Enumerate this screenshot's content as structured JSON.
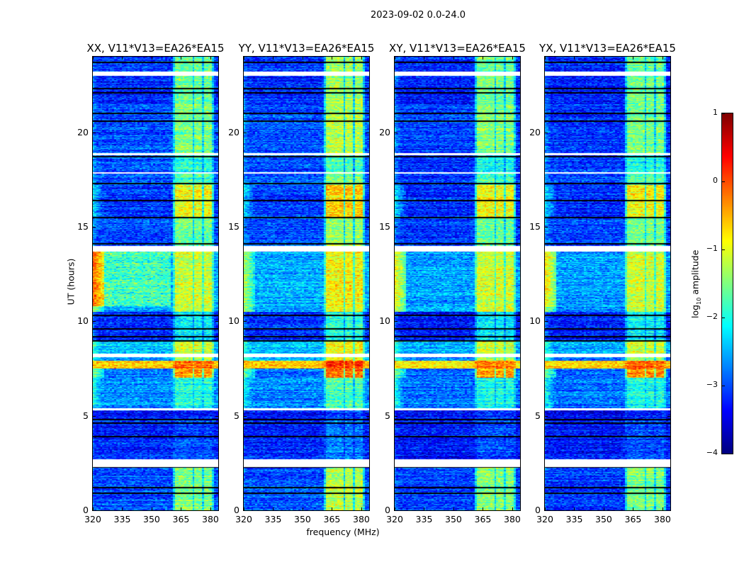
{
  "chart_data": {
    "type": "heatmap",
    "title": "2023-09-02 0.0-24.0",
    "xlabel": "frequency (MHz)",
    "ylabel": "UT (hours)",
    "xlim": [
      320,
      384
    ],
    "ylim": [
      0,
      24
    ],
    "xticks": [
      "320",
      "335",
      "350",
      "365",
      "380"
    ],
    "xtick_values": [
      320,
      335,
      350,
      365,
      380
    ],
    "yticks": [
      "0",
      "5",
      "10",
      "15",
      "20"
    ],
    "ytick_values": [
      0,
      5,
      10,
      15,
      20
    ],
    "colorbar": {
      "label_main": "log",
      "label_sub": "10",
      "label_rest": " amplitude",
      "range": [
        -4,
        1
      ],
      "ticks": [
        "1",
        "0",
        "−1",
        "−2",
        "−3",
        "−4"
      ],
      "tick_values": [
        1,
        0,
        -1,
        -2,
        -3,
        -4
      ],
      "colormap": "jet"
    },
    "panels": [
      {
        "title": "XX, V11*V13=EA26*EA15",
        "base_offset": 0,
        "rfi_offset": 0,
        "edge_boost": 1
      },
      {
        "title": "YY, V11*V13=EA26*EA15",
        "base_offset": 0,
        "rfi_offset": 0.25,
        "edge_boost": 0
      },
      {
        "title": "XY, V11*V13=EA26*EA15",
        "base_offset": -0.1,
        "rfi_offset": 0,
        "edge_boost": 0.3
      },
      {
        "title": "YX, V11*V13=EA26*EA15",
        "base_offset": -0.1,
        "rfi_offset": 0,
        "edge_boost": 0.4
      }
    ],
    "rfi_channels_mhz": [
      [
        362,
        366.5
      ],
      [
        367.5,
        371
      ],
      [
        372,
        376
      ],
      [
        377,
        380.5
      ]
    ],
    "time_segments": [
      {
        "from": 0,
        "to": 2.3,
        "base": -3.0,
        "rfi": -1.5,
        "edge": -2.8
      },
      {
        "from": 2.3,
        "to": 2.7,
        "flagged": true
      },
      {
        "from": 2.7,
        "to": 4.8,
        "base": -3.2,
        "rfi": -3.0,
        "edge": -3.0
      },
      {
        "from": 4.8,
        "to": 5.3,
        "base": -3.3,
        "rfi": -3.2,
        "edge": -3.2
      },
      {
        "from": 5.3,
        "to": 5.4,
        "flagged": true
      },
      {
        "from": 5.4,
        "to": 7.0,
        "base": -2.7,
        "rfi": -2.0,
        "edge": -2.0
      },
      {
        "from": 7.0,
        "to": 7.5,
        "base": -2.8,
        "rfi": -0.4,
        "edge": -1.5
      },
      {
        "from": 7.5,
        "to": 7.9,
        "base": -0.6,
        "rfi": -0.1,
        "edge": -0.4
      },
      {
        "from": 7.9,
        "to": 8.1,
        "base": -2.6,
        "rfi": -1.2,
        "edge": -1.8
      },
      {
        "from": 8.1,
        "to": 8.3,
        "flagged": true
      },
      {
        "from": 8.3,
        "to": 9.0,
        "base": -2.4,
        "rfi": -1.1,
        "edge": -1.8
      },
      {
        "from": 9.0,
        "to": 10.5,
        "base": -3.2,
        "rfi": -2.2,
        "edge": -2.8
      },
      {
        "from": 10.5,
        "to": 13.7,
        "base": -2.5,
        "rfi": -1.1,
        "edge": -1.2
      },
      {
        "from": 13.7,
        "to": 14.0,
        "flagged": true
      },
      {
        "from": 14.0,
        "to": 15.5,
        "base": -3.0,
        "rfi": -1.6,
        "edge": -2.6
      },
      {
        "from": 15.5,
        "to": 17.2,
        "base": -3.1,
        "rfi": -0.9,
        "edge": -2.2
      },
      {
        "from": 17.2,
        "to": 17.8,
        "base": -3.0,
        "rfi": -1.8,
        "edge": -2.6
      },
      {
        "from": 17.8,
        "to": 17.9,
        "flagged": true
      },
      {
        "from": 17.9,
        "to": 18.8,
        "base": -3.0,
        "rfi": -2.0,
        "edge": -2.6
      },
      {
        "from": 18.8,
        "to": 18.9,
        "flagged": true
      },
      {
        "from": 18.9,
        "to": 21.5,
        "base": -3.0,
        "rfi": -1.5,
        "edge": -2.6
      },
      {
        "from": 21.5,
        "to": 23.0,
        "base": -3.2,
        "rfi": -1.6,
        "edge": -2.8
      },
      {
        "from": 23.0,
        "to": 23.2,
        "flagged": true
      },
      {
        "from": 23.2,
        "to": 24.0,
        "base": -3.1,
        "rfi": -1.6,
        "edge": -2.8
      }
    ],
    "zero_rows_hours": [
      23.7,
      22.3,
      22.1,
      21.0,
      20.6,
      18.7,
      17.3,
      16.4,
      15.5,
      14.1,
      10.3,
      9.6,
      9.2,
      8.95,
      4.8,
      4.6,
      3.9,
      2.3,
      1.2,
      0.9
    ]
  }
}
